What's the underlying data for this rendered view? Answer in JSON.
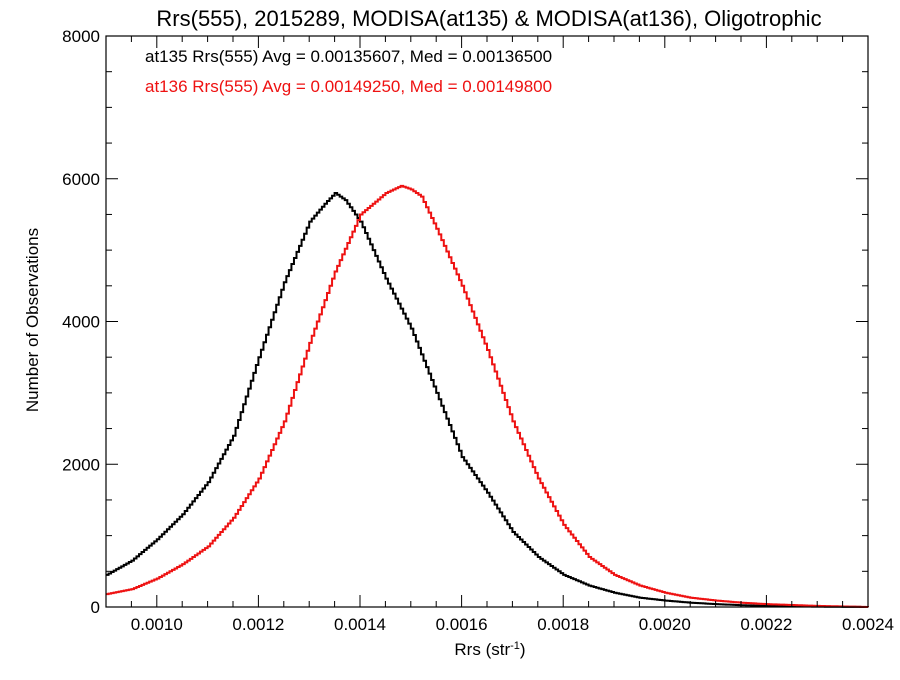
{
  "chart_data": {
    "type": "line",
    "title": "Rrs(555), 2015289, MODISA(at135) & MODISA(at136), Oligotrophic",
    "xlabel_main": "Rrs (str",
    "xlabel_sup": "-1",
    "xlabel_end": ")",
    "ylabel": "Number of Observations",
    "xlim": [
      0.0009,
      0.0024
    ],
    "ylim": [
      0,
      8000
    ],
    "grid": false,
    "x_ticks": [
      0.001,
      0.0012,
      0.0014,
      0.0016,
      0.0018,
      0.002,
      0.0022,
      0.0024
    ],
    "x_tick_labels": [
      "0.0010",
      "0.0012",
      "0.0014",
      "0.0016",
      "0.0018",
      "0.0020",
      "0.0022",
      "0.0024"
    ],
    "y_ticks": [
      0,
      2000,
      4000,
      6000,
      8000
    ],
    "y_tick_labels": [
      "0",
      "2000",
      "4000",
      "6000",
      "8000"
    ],
    "annotations": [
      {
        "text": "at135 Rrs(555) Avg = 0.00135607, Med = 0.00136500",
        "color": "#000000"
      },
      {
        "text": "at136 Rrs(555) Avg = 0.00149250, Med = 0.00149800",
        "color": "#ee1111"
      }
    ],
    "series": [
      {
        "color": "#000000",
        "x": [
          0.0009,
          0.00095,
          0.001,
          0.00105,
          0.0011,
          0.00115,
          0.0012,
          0.00125,
          0.0013,
          0.00133,
          0.00135,
          0.00136,
          0.00137,
          0.0014,
          0.00145,
          0.0015,
          0.00155,
          0.0016,
          0.00165,
          0.0017,
          0.00175,
          0.0018,
          0.00185,
          0.0019,
          0.00195,
          0.002,
          0.00205,
          0.0021,
          0.00215,
          0.0022,
          0.0023,
          0.0024
        ],
        "y": [
          450,
          650,
          950,
          1300,
          1750,
          2400,
          3500,
          4550,
          5400,
          5650,
          5800,
          5750,
          5700,
          5400,
          4600,
          3900,
          3000,
          2100,
          1600,
          1050,
          700,
          450,
          300,
          200,
          130,
          90,
          60,
          40,
          25,
          15,
          5,
          0
        ]
      },
      {
        "color": "#ee1111",
        "x": [
          0.0009,
          0.00095,
          0.001,
          0.00105,
          0.0011,
          0.00115,
          0.0012,
          0.00125,
          0.0013,
          0.00135,
          0.0014,
          0.00145,
          0.00148,
          0.0015,
          0.00152,
          0.00155,
          0.0016,
          0.00165,
          0.0017,
          0.00175,
          0.0018,
          0.00185,
          0.0019,
          0.00195,
          0.002,
          0.00205,
          0.0021,
          0.00215,
          0.0022,
          0.0023,
          0.0024
        ],
        "y": [
          180,
          250,
          400,
          600,
          850,
          1250,
          1800,
          2600,
          3700,
          4700,
          5500,
          5800,
          5900,
          5850,
          5750,
          5300,
          4500,
          3600,
          2600,
          1800,
          1150,
          700,
          450,
          300,
          200,
          130,
          90,
          60,
          40,
          15,
          0
        ]
      }
    ]
  }
}
